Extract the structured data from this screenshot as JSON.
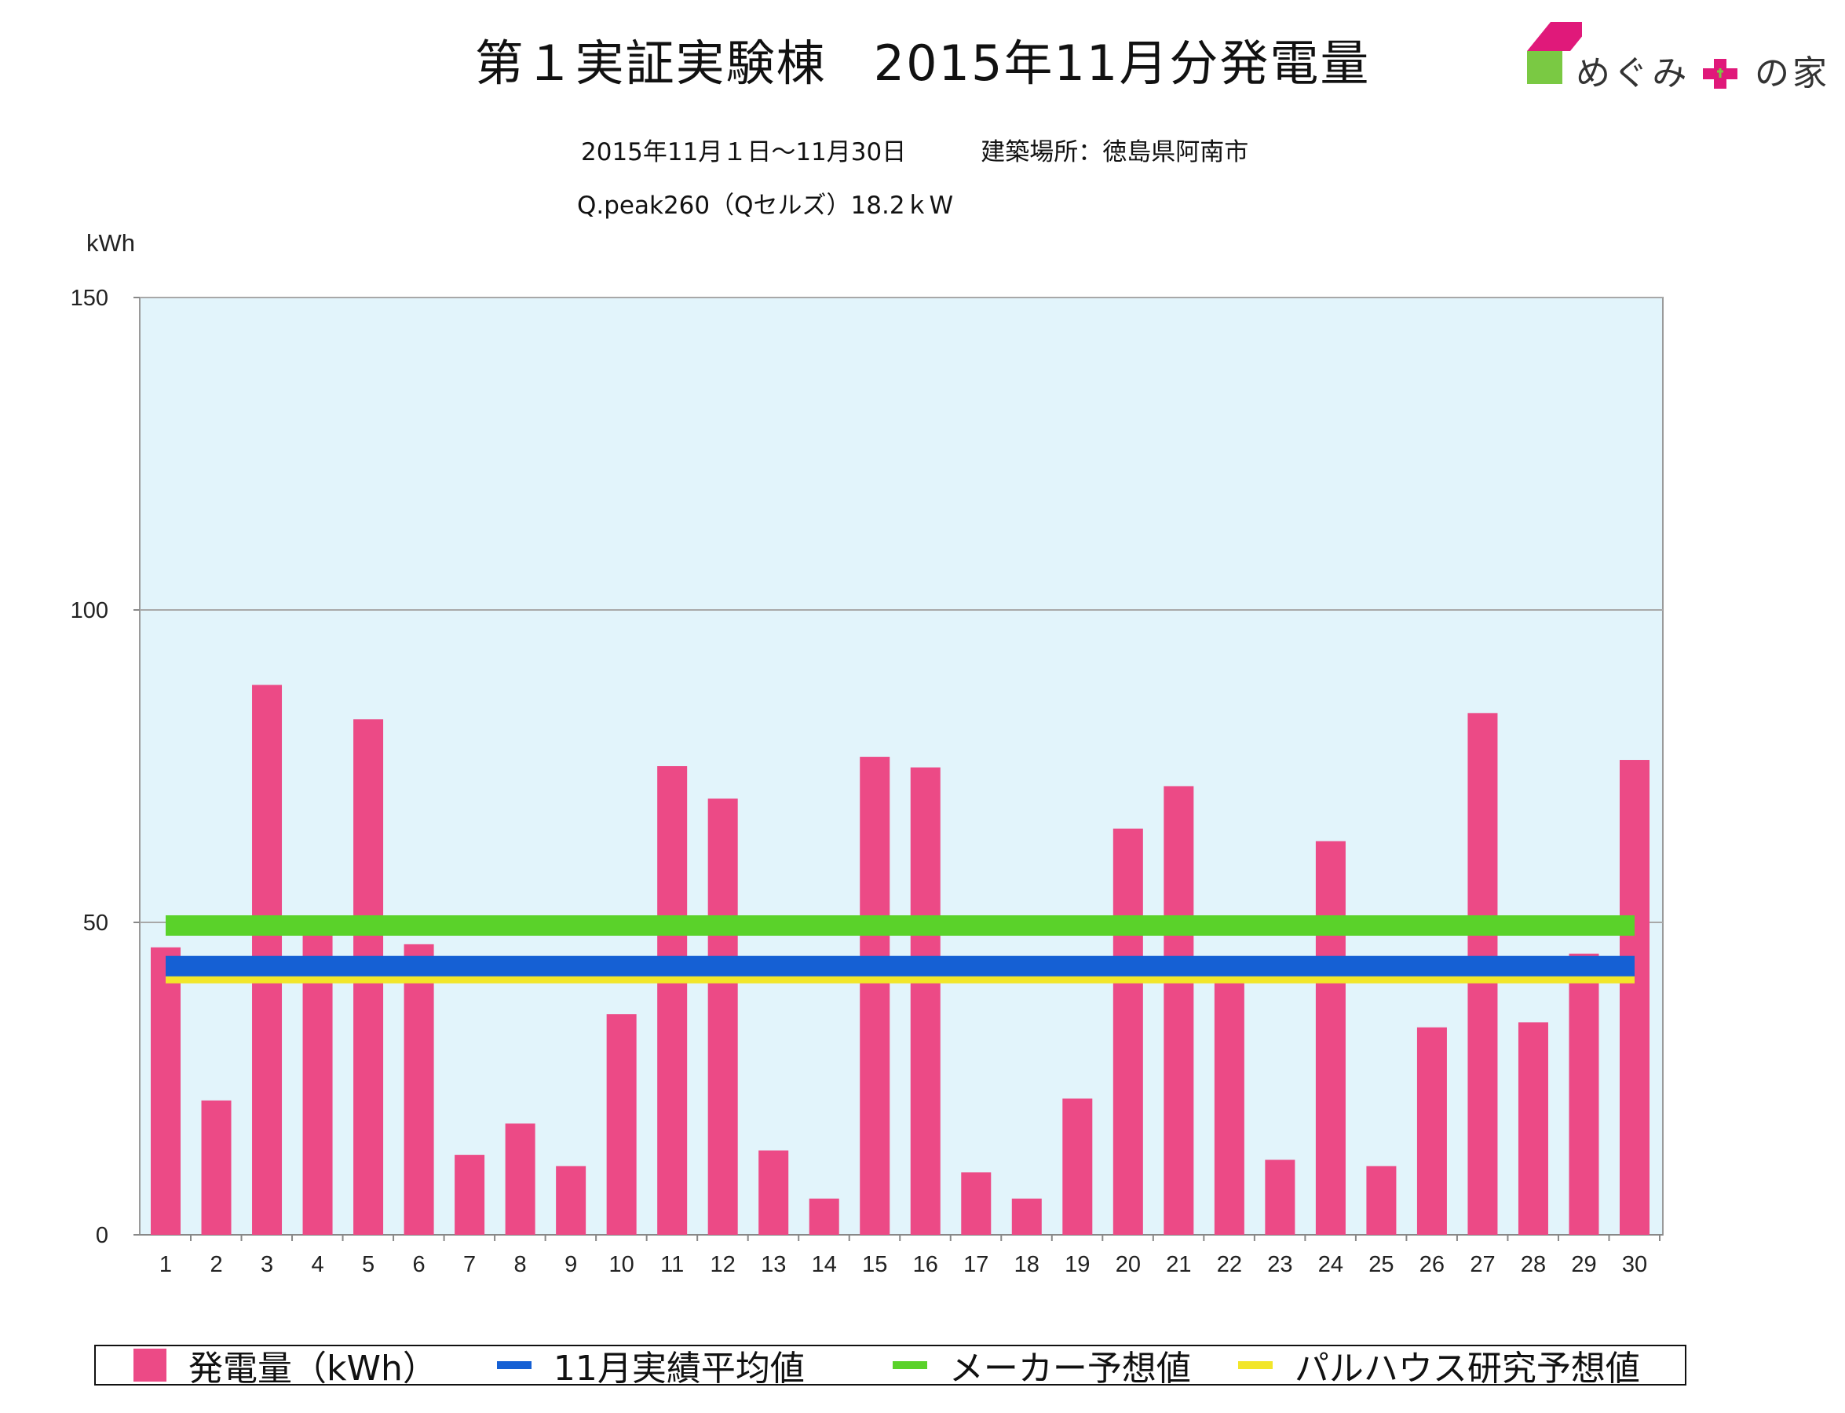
{
  "header": {
    "title_part1": "第１実証実験棟",
    "title_part2": "2015年11月分発電量",
    "period": "2015年11月１日〜11月30日",
    "location": "建築場所：徳島県阿南市",
    "system": "Q.peak260（Qセルズ）18.2ｋW"
  },
  "logo": {
    "text_left": "めぐみ",
    "text_right": "の家",
    "colors": {
      "roof": "#e0197a",
      "wall": "#7ac943",
      "cross": "#e0197a"
    }
  },
  "chart_data": {
    "type": "bar",
    "ylabel": "kWh",
    "ylim": [
      0,
      150
    ],
    "yticks": [
      0,
      50,
      100,
      150
    ],
    "categories": [
      "1",
      "2",
      "3",
      "4",
      "5",
      "6",
      "7",
      "8",
      "9",
      "10",
      "11",
      "12",
      "13",
      "14",
      "15",
      "16",
      "17",
      "18",
      "19",
      "20",
      "21",
      "22",
      "23",
      "24",
      "25",
      "26",
      "27",
      "28",
      "29",
      "30"
    ],
    "series": [
      {
        "name": "発電量（kWh）",
        "color": "#ec4a86",
        "values": [
          46,
          21.5,
          88,
          49,
          82.5,
          46.5,
          12.8,
          17.8,
          11,
          35.3,
          75,
          69.8,
          13.5,
          5.8,
          76.5,
          74.8,
          10,
          5.8,
          21.8,
          65,
          71.8,
          41,
          12,
          63,
          11,
          33.2,
          83.5,
          34,
          45,
          76
        ]
      },
      {
        "name": "11月実績平均値",
        "color": "#1560d4",
        "line_value": 43,
        "style": "hline"
      },
      {
        "name": "メーカー予想値",
        "color": "#5ad22a",
        "line_value": 49.5,
        "style": "hline"
      },
      {
        "name": "パルハウス研究予想値",
        "color": "#f2e62a",
        "line_value": 41,
        "style": "hline"
      }
    ],
    "plot_background": "#e2f4fb",
    "grid": true
  },
  "legend": {
    "item1": "発電量（kWh）",
    "item2": "11月実績平均値",
    "item3": "メーカー予想値",
    "item4": "パルハウス研究予想値"
  }
}
